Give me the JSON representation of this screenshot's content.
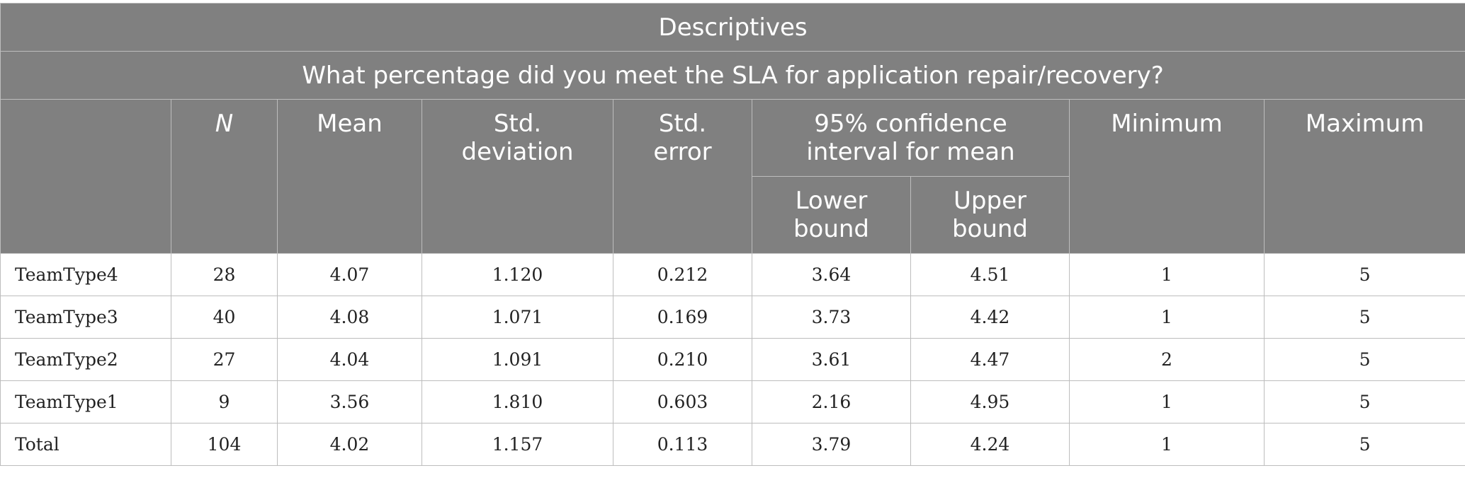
{
  "table": {
    "title": "Descriptives",
    "caption": "What percentage did you meet the SLA for application repair/recovery?",
    "headers": {
      "n": "N",
      "mean": "Mean",
      "std_dev": "Std.\ndeviation",
      "std_err": "Std.\nerror",
      "ci": "95% confidence\ninterval for mean",
      "lower": "Lower\nbound",
      "upper": "Upper\nbound",
      "min": "Minimum",
      "max": "Maximum"
    },
    "rows": [
      {
        "label": "TeamType4",
        "n": "28",
        "mean": "4.07",
        "sd": "1.120",
        "se": "0.212",
        "lower": "3.64",
        "upper": "4.51",
        "min": "1",
        "max": "5"
      },
      {
        "label": "TeamType3",
        "n": "40",
        "mean": "4.08",
        "sd": "1.071",
        "se": "0.169",
        "lower": "3.73",
        "upper": "4.42",
        "min": "1",
        "max": "5"
      },
      {
        "label": "TeamType2",
        "n": "27",
        "mean": "4.04",
        "sd": "1.091",
        "se": "0.210",
        "lower": "3.61",
        "upper": "4.47",
        "min": "2",
        "max": "5"
      },
      {
        "label": "TeamType1",
        "n": "9",
        "mean": "3.56",
        "sd": "1.810",
        "se": "0.603",
        "lower": "2.16",
        "upper": "4.95",
        "min": "1",
        "max": "5"
      },
      {
        "label": "Total",
        "n": "104",
        "mean": "4.02",
        "sd": "1.157",
        "se": "0.113",
        "lower": "3.79",
        "upper": "4.24",
        "min": "1",
        "max": "5"
      }
    ]
  }
}
